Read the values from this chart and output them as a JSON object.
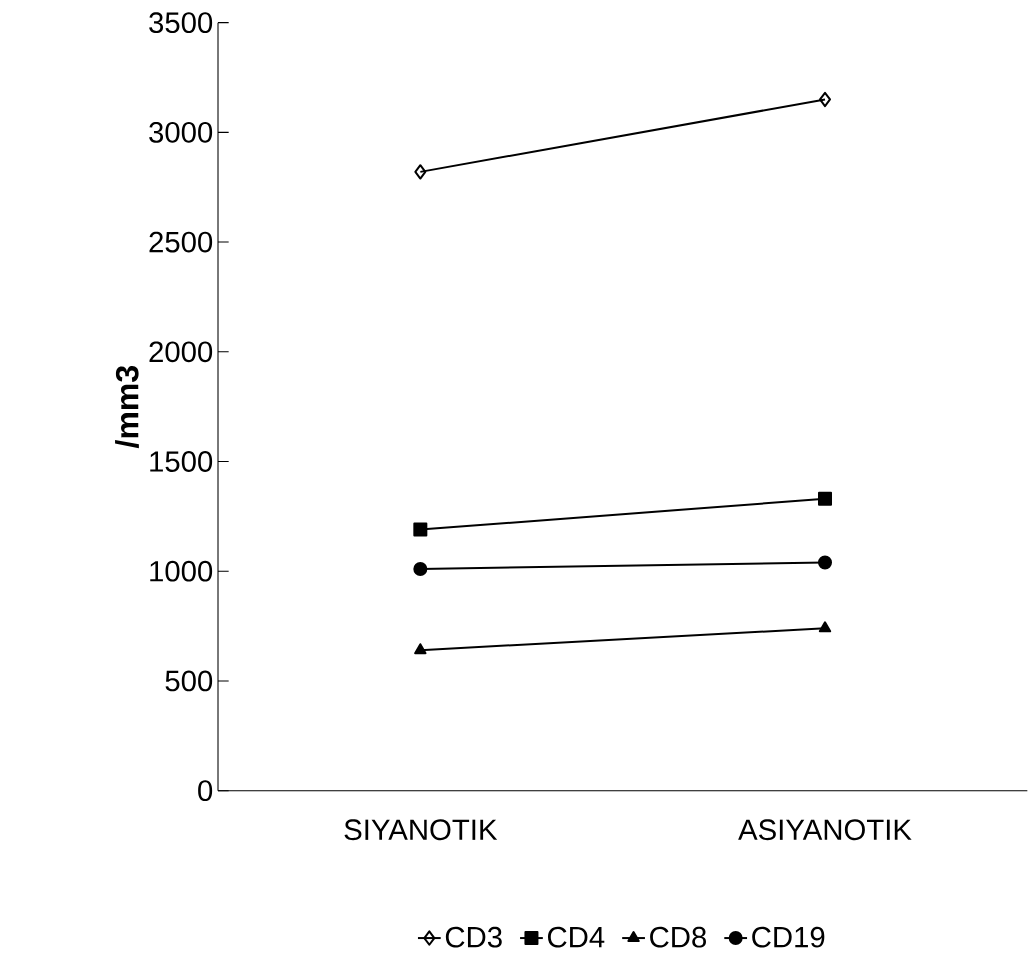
{
  "chart_data": {
    "type": "line",
    "ylabel": "/mm3",
    "categories": [
      "SIYANOTIK",
      "ASIYANOTIK"
    ],
    "series": [
      {
        "name": "CD3",
        "color": "#000000",
        "marker": "diamond",
        "values": [
          2820,
          3150
        ]
      },
      {
        "name": "CD4",
        "color": "#000000",
        "marker": "square",
        "values": [
          1190,
          1330
        ]
      },
      {
        "name": "CD8",
        "color": "#000000",
        "marker": "triangle",
        "values": [
          640,
          740
        ]
      },
      {
        "name": "CD19",
        "color": "#000000",
        "marker": "circle",
        "values": [
          1010,
          1040
        ]
      }
    ],
    "ylim": [
      0,
      3500
    ],
    "yticks": [
      0,
      500,
      1000,
      1500,
      2000,
      2500,
      3000,
      3500
    ],
    "grid": false,
    "legend": "bottom",
    "line_style": "solid"
  }
}
